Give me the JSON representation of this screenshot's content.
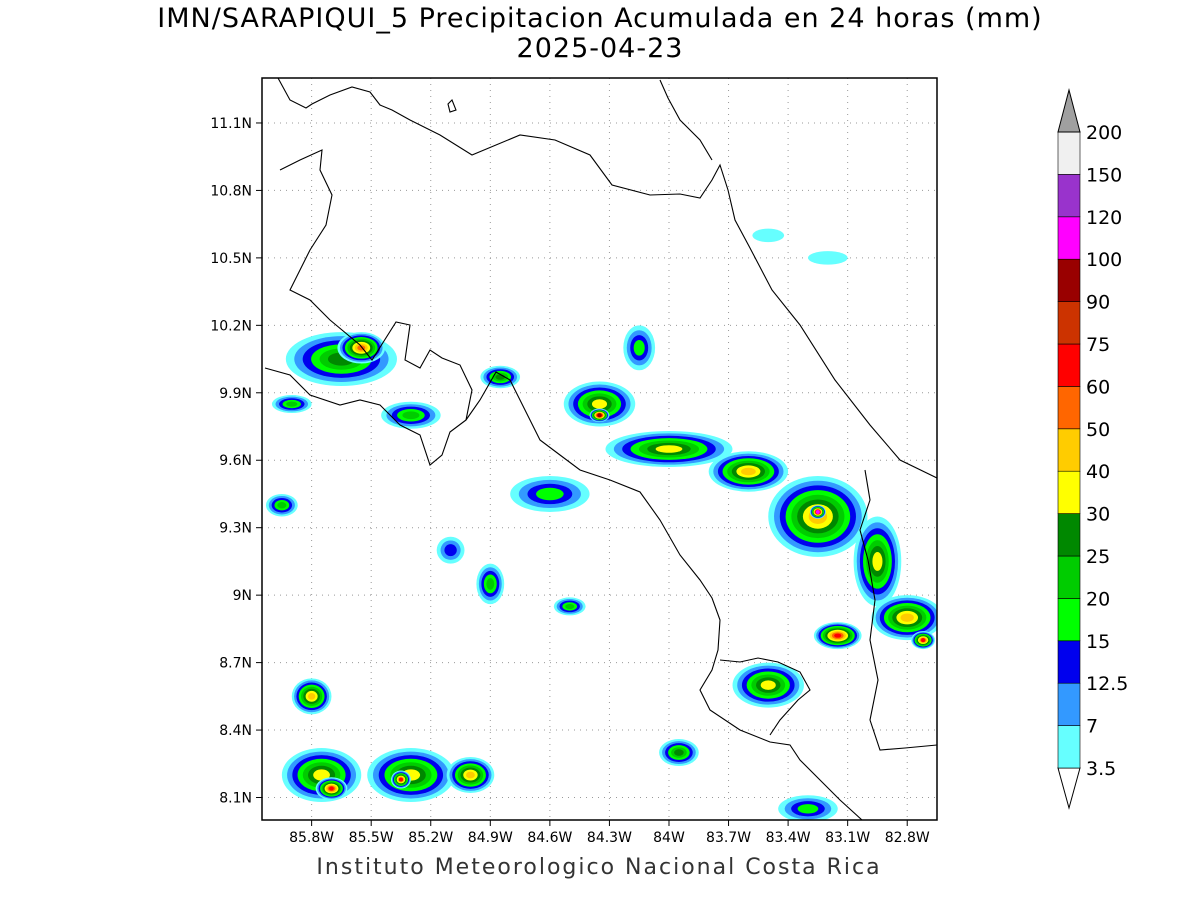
{
  "title": {
    "line1": "IMN/SARAPIQUI_5 Precipitacion Acumulada en 24 horas (mm)",
    "line2": "2025-04-23"
  },
  "footer": "Instituto Meteorologico Nacional Costa Rica",
  "map": {
    "lon_range": [
      -86.05,
      -82.65
    ],
    "lat_range": [
      8.0,
      11.3
    ],
    "lat_ticks": [
      {
        "value": 11.1,
        "label": "11.1N"
      },
      {
        "value": 10.8,
        "label": "10.8N"
      },
      {
        "value": 10.5,
        "label": "10.5N"
      },
      {
        "value": 10.2,
        "label": "10.2N"
      },
      {
        "value": 9.9,
        "label": "9.9N"
      },
      {
        "value": 9.6,
        "label": "9.6N"
      },
      {
        "value": 9.3,
        "label": "9.3N"
      },
      {
        "value": 9.0,
        "label": "9N"
      },
      {
        "value": 8.7,
        "label": "8.7N"
      },
      {
        "value": 8.4,
        "label": "8.4N"
      },
      {
        "value": 8.1,
        "label": "8.1N"
      }
    ],
    "lon_ticks": [
      {
        "value": -85.8,
        "label": "85.8W"
      },
      {
        "value": -85.5,
        "label": "85.5W"
      },
      {
        "value": -85.2,
        "label": "85.2W"
      },
      {
        "value": -84.9,
        "label": "84.9W"
      },
      {
        "value": -84.6,
        "label": "84.6W"
      },
      {
        "value": -84.3,
        "label": "84.3W"
      },
      {
        "value": -84.0,
        "label": "84W"
      },
      {
        "value": -83.7,
        "label": "83.7W"
      },
      {
        "value": -83.4,
        "label": "83.4W"
      },
      {
        "value": -83.1,
        "label": "83.1W"
      },
      {
        "value": -82.8,
        "label": "82.8W"
      }
    ],
    "grid": true
  },
  "colorbar": {
    "levels": [
      {
        "label": "3.5",
        "color": "#66ffff"
      },
      {
        "label": "7",
        "color": "#3399ff"
      },
      {
        "label": "12.5",
        "color": "#0000ee"
      },
      {
        "label": "15",
        "color": "#00ff00"
      },
      {
        "label": "20",
        "color": "#00cc00"
      },
      {
        "label": "25",
        "color": "#008800"
      },
      {
        "label": "30",
        "color": "#ffff00"
      },
      {
        "label": "40",
        "color": "#ffcc00"
      },
      {
        "label": "50",
        "color": "#ff6600"
      },
      {
        "label": "60",
        "color": "#ff0000"
      },
      {
        "label": "75",
        "color": "#cc3300"
      },
      {
        "label": "90",
        "color": "#990000"
      },
      {
        "label": "100",
        "color": "#ff00ff"
      },
      {
        "label": "120",
        "color": "#9933cc"
      },
      {
        "label": "150",
        "color": "#f0f0f0"
      },
      {
        "label": "200",
        "color": "#a0a0a0"
      }
    ],
    "under_color": "#ffffff",
    "over_color": "#a0a0a0"
  },
  "precip_cells": [
    {
      "lon": -85.65,
      "lat": 10.05,
      "rx": 0.28,
      "ry": 0.12,
      "level": 5
    },
    {
      "lon": -85.55,
      "lat": 10.1,
      "rx": 0.12,
      "ry": 0.07,
      "level": 8
    },
    {
      "lon": -85.3,
      "lat": 9.8,
      "rx": 0.15,
      "ry": 0.06,
      "level": 4
    },
    {
      "lon": -84.85,
      "lat": 9.97,
      "rx": 0.1,
      "ry": 0.05,
      "level": 5
    },
    {
      "lon": -84.15,
      "lat": 10.1,
      "rx": 0.08,
      "ry": 0.1,
      "level": 3
    },
    {
      "lon": -84.35,
      "lat": 9.85,
      "rx": 0.18,
      "ry": 0.1,
      "level": 6
    },
    {
      "lon": -84.35,
      "lat": 9.8,
      "rx": 0.05,
      "ry": 0.03,
      "level": 11
    },
    {
      "lon": -84.0,
      "lat": 9.65,
      "rx": 0.32,
      "ry": 0.08,
      "level": 6
    },
    {
      "lon": -83.6,
      "lat": 9.55,
      "rx": 0.2,
      "ry": 0.09,
      "level": 7
    },
    {
      "lon": -83.25,
      "lat": 9.35,
      "rx": 0.25,
      "ry": 0.18,
      "level": 7
    },
    {
      "lon": -83.25,
      "lat": 9.37,
      "rx": 0.04,
      "ry": 0.03,
      "level": 12
    },
    {
      "lon": -82.95,
      "lat": 9.15,
      "rx": 0.12,
      "ry": 0.2,
      "level": 6
    },
    {
      "lon": -82.8,
      "lat": 8.9,
      "rx": 0.18,
      "ry": 0.1,
      "level": 7
    },
    {
      "lon": -83.15,
      "lat": 8.82,
      "rx": 0.12,
      "ry": 0.06,
      "level": 9
    },
    {
      "lon": -82.72,
      "lat": 8.8,
      "rx": 0.06,
      "ry": 0.04,
      "level": 9
    },
    {
      "lon": -83.5,
      "lat": 8.6,
      "rx": 0.18,
      "ry": 0.1,
      "level": 6
    },
    {
      "lon": -84.6,
      "lat": 9.45,
      "rx": 0.2,
      "ry": 0.08,
      "level": 3
    },
    {
      "lon": -84.9,
      "lat": 9.05,
      "rx": 0.07,
      "ry": 0.09,
      "level": 4
    },
    {
      "lon": -85.1,
      "lat": 9.2,
      "rx": 0.07,
      "ry": 0.06,
      "level": 2
    },
    {
      "lon": -85.8,
      "lat": 8.55,
      "rx": 0.1,
      "ry": 0.08,
      "level": 7
    },
    {
      "lon": -85.75,
      "lat": 8.2,
      "rx": 0.2,
      "ry": 0.12,
      "level": 6
    },
    {
      "lon": -85.7,
      "lat": 8.14,
      "rx": 0.08,
      "ry": 0.05,
      "level": 9
    },
    {
      "lon": -85.3,
      "lat": 8.2,
      "rx": 0.22,
      "ry": 0.12,
      "level": 6
    },
    {
      "lon": -85.35,
      "lat": 8.18,
      "rx": 0.05,
      "ry": 0.04,
      "level": 9
    },
    {
      "lon": -85.0,
      "lat": 8.2,
      "rx": 0.12,
      "ry": 0.08,
      "level": 7
    },
    {
      "lon": -83.95,
      "lat": 8.3,
      "rx": 0.1,
      "ry": 0.06,
      "level": 5
    },
    {
      "lon": -84.5,
      "lat": 8.95,
      "rx": 0.08,
      "ry": 0.04,
      "level": 4
    },
    {
      "lon": -85.9,
      "lat": 9.85,
      "rx": 0.1,
      "ry": 0.04,
      "level": 4
    },
    {
      "lon": -85.95,
      "lat": 9.4,
      "rx": 0.08,
      "ry": 0.05,
      "level": 4
    },
    {
      "lon": -83.2,
      "lat": 10.5,
      "rx": 0.1,
      "ry": 0.03,
      "level": 0
    },
    {
      "lon": -83.5,
      "lat": 10.6,
      "rx": 0.08,
      "ry": 0.03,
      "level": 0
    },
    {
      "lon": -83.3,
      "lat": 8.05,
      "rx": 0.15,
      "ry": 0.06,
      "level": 3
    }
  ]
}
